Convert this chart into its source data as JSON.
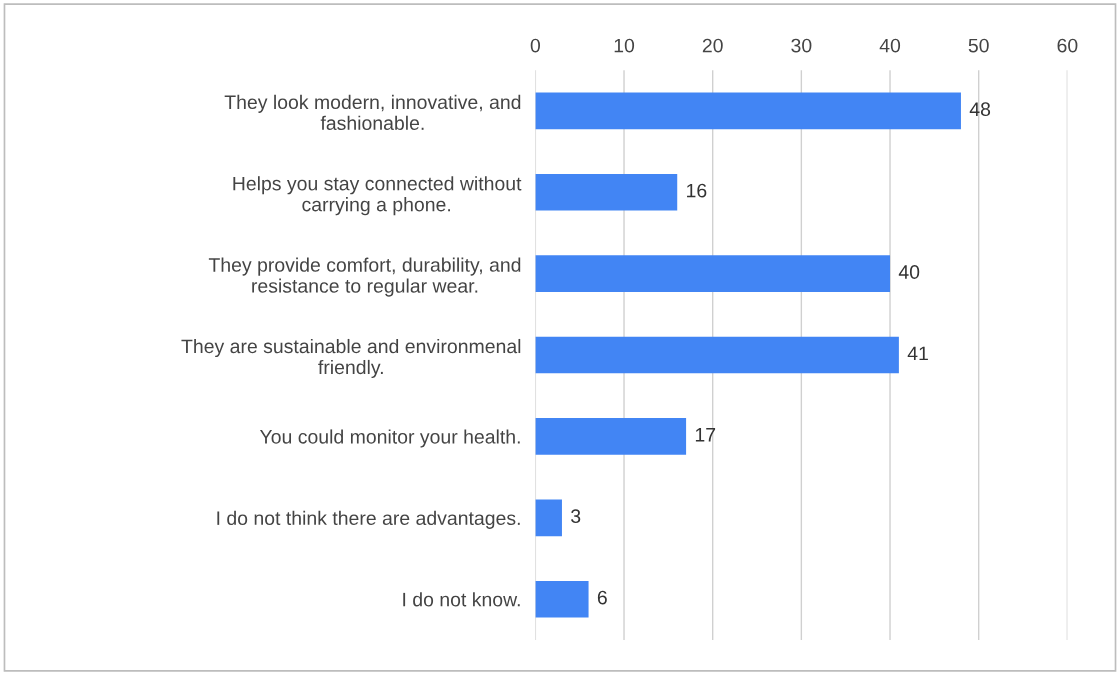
{
  "chart_data": {
    "type": "bar",
    "orientation": "horizontal",
    "categories": [
      "They look modern, innovative, and\nfashionable.",
      "Helps you stay connected without\ncarrying a phone.",
      "They provide comfort, durability, and\nresistance to regular wear.",
      "They are sustainable and environmenal\nfriendly.",
      "You could monitor your health.",
      "I do not think there are advantages.",
      "I do not know."
    ],
    "values": [
      48,
      16,
      40,
      41,
      17,
      3,
      6
    ],
    "color": "#4285f4",
    "xlim": [
      0,
      60
    ],
    "xticks": [
      0,
      10,
      20,
      30,
      40,
      50,
      60
    ],
    "grid": "x",
    "data_labels": true,
    "legend": false
  }
}
